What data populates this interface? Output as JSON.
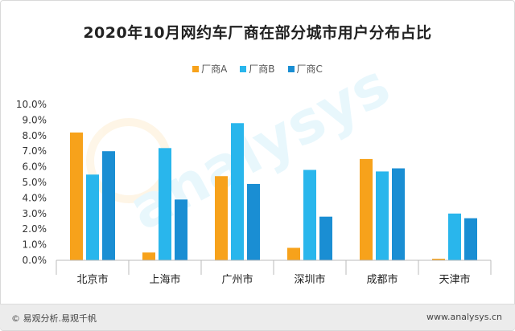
{
  "footer": {
    "left": "© 易观分析.易观千帆",
    "right": "www.analysys.cn"
  },
  "chart_data": {
    "type": "bar",
    "title": "2020年10月网约车厂商在部分城市用户分布占比",
    "categories": [
      "北京市",
      "上海市",
      "广州市",
      "深圳市",
      "成都市",
      "天津市"
    ],
    "series": [
      {
        "name": "厂商A",
        "color": "#f7a21b",
        "values": [
          8.2,
          0.5,
          5.4,
          0.8,
          6.5,
          0.1
        ]
      },
      {
        "name": "厂商B",
        "color": "#29b6ec",
        "values": [
          5.5,
          7.2,
          8.8,
          5.8,
          5.7,
          3.0
        ]
      },
      {
        "name": "厂商C",
        "color": "#1a8ed3",
        "values": [
          7.0,
          3.9,
          4.9,
          2.8,
          5.9,
          2.7
        ]
      }
    ],
    "y_ticks": [
      "0.0%",
      "1.0%",
      "2.0%",
      "3.0%",
      "4.0%",
      "5.0%",
      "6.0%",
      "7.0%",
      "8.0%",
      "9.0%",
      "10.0%"
    ],
    "ylim": [
      0,
      10
    ],
    "grid": false,
    "legend_position": "top-center",
    "watermark": "analysys 易观分析"
  }
}
